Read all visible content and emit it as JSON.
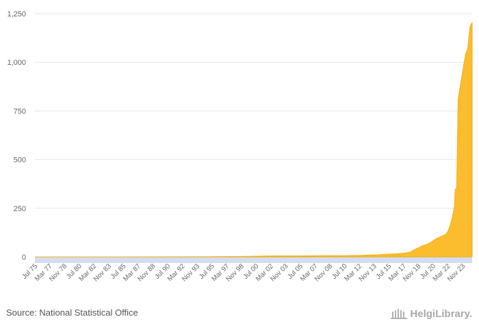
{
  "chart_data": {
    "type": "area",
    "title": "",
    "xlabel": "",
    "ylabel": "",
    "ylim": [
      0,
      1250
    ],
    "y_ticks": [
      "0",
      "250",
      "500",
      "750",
      "1,000",
      "1,250"
    ],
    "y_tick_values": [
      0,
      250,
      500,
      750,
      1000,
      1250
    ],
    "x_tick_labels": [
      "Jul 75",
      "Mar 77",
      "Nov 78",
      "Jul 80",
      "Mar 82",
      "Nov 83",
      "Jul 85",
      "Mar 87",
      "Nov 88",
      "Jul 90",
      "Mar 92",
      "Nov 93",
      "Jul 95",
      "Mar 97",
      "Nov 98",
      "Jul 00",
      "Mar 02",
      "Nov 03",
      "Jul 05",
      "Mar 07",
      "Nov 08",
      "Jul 10",
      "Mar 12",
      "Nov 13",
      "Jul 15",
      "Mar 17",
      "Nov 18",
      "Jul 20",
      "Mar 22",
      "Nov 23"
    ],
    "x_range": [
      "1975-07",
      "2024-12"
    ],
    "grid": true,
    "fill_color": "#fbbc2e",
    "axis_band_color": "#d4dcef",
    "series": [
      {
        "points": [
          [
            "1975-07",
            0.01
          ],
          [
            "1980-01",
            0.02
          ],
          [
            "1985-01",
            0.05
          ],
          [
            "1990-01",
            0.3
          ],
          [
            "1995-01",
            1
          ],
          [
            "1999-01",
            2
          ],
          [
            "2001-01",
            4
          ],
          [
            "2002-06",
            5
          ],
          [
            "2005-01",
            5
          ],
          [
            "2008-01",
            6
          ],
          [
            "2010-01",
            6
          ],
          [
            "2012-06",
            8
          ],
          [
            "2013-06",
            10
          ],
          [
            "2014-06",
            11
          ],
          [
            "2015-06",
            14
          ],
          [
            "2016-06",
            16
          ],
          [
            "2017-06",
            20
          ],
          [
            "2017-12",
            25
          ],
          [
            "2018-06",
            38
          ],
          [
            "2018-12",
            48
          ],
          [
            "2019-06",
            60
          ],
          [
            "2019-12",
            66
          ],
          [
            "2020-06",
            80
          ],
          [
            "2020-12",
            95
          ],
          [
            "2021-06",
            105
          ],
          [
            "2021-12",
            115
          ],
          [
            "2022-03",
            130
          ],
          [
            "2022-06",
            160
          ],
          [
            "2022-09",
            200
          ],
          [
            "2022-12",
            260
          ],
          [
            "2023-01",
            345
          ],
          [
            "2023-03",
            355
          ],
          [
            "2023-05",
            810
          ],
          [
            "2023-08",
            880
          ],
          [
            "2023-11",
            950
          ],
          [
            "2024-03",
            1040
          ],
          [
            "2024-06",
            1070
          ],
          [
            "2024-09",
            1180
          ],
          [
            "2024-12",
            1205
          ]
        ]
      }
    ]
  },
  "footer": {
    "source": "Source: National Statistical Office",
    "logo_text": "HelgiLibrary."
  }
}
